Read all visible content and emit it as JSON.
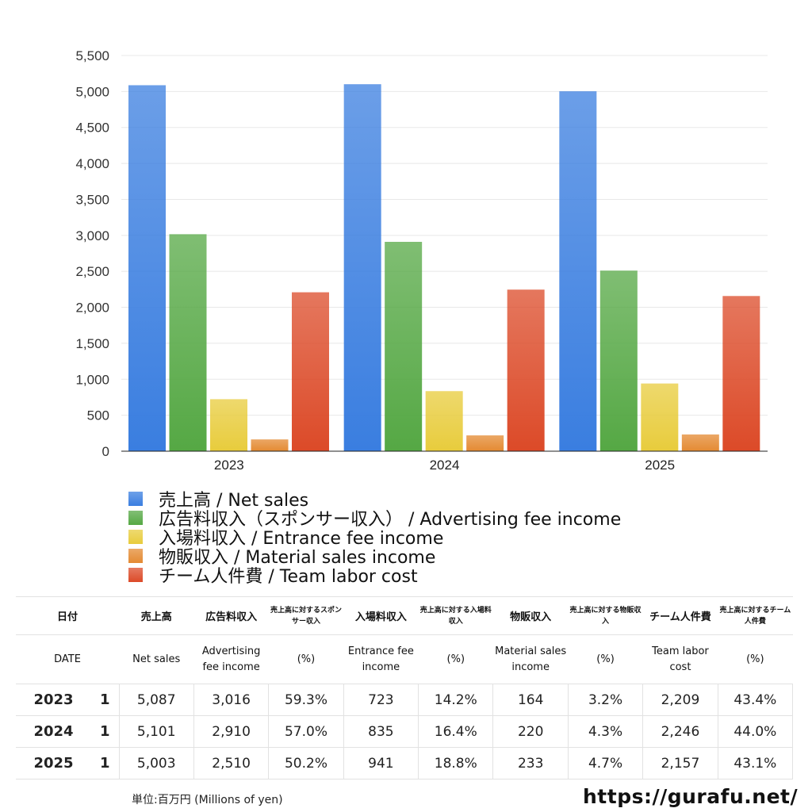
{
  "chart_data": {
    "type": "bar",
    "categories": [
      "2023",
      "2024",
      "2025"
    ],
    "ylim": [
      0,
      5500
    ],
    "yticks": [
      "0",
      "500",
      "1,000",
      "1,500",
      "2,000",
      "2,500",
      "3,000",
      "3,500",
      "4,000",
      "4,500",
      "5,000",
      "5,500"
    ],
    "grid": true,
    "legend_position": "bottom-left",
    "series": [
      {
        "name": "売上高 / Net sales",
        "values": [
          5087,
          5101,
          5003
        ],
        "color": "#3a7ee0"
      },
      {
        "name": "広告料収入（スポンサー収入） / Advertising fee income",
        "values": [
          3016,
          2910,
          2510
        ],
        "color": "#55a844"
      },
      {
        "name": "入場料収入 / Entrance fee income",
        "values": [
          723,
          835,
          941
        ],
        "color": "#e8cc3c"
      },
      {
        "name": "物販収入 / Material sales income",
        "values": [
          164,
          220,
          233
        ],
        "color": "#e48a32"
      },
      {
        "name": "チーム人件費 / Team labor cost",
        "values": [
          2209,
          2246,
          2157
        ],
        "color": "#dc4a28"
      }
    ]
  },
  "table": {
    "header_jp": [
      "日付",
      "売上高",
      "広告料収入",
      "売上高に対するスポンサー収入",
      "入場料収入",
      "売上高に対する入場料収入",
      "物販収入",
      "売上高に対する物販収入",
      "チーム人件費",
      "売上高に対するチーム人件費"
    ],
    "header_en": [
      "DATE",
      "Net sales",
      "Advertising fee income",
      "(%)",
      "Entrance fee income",
      "(%)",
      "Material sales income",
      "(%)",
      "Team labor cost",
      "(%)"
    ],
    "rows": [
      {
        "year": "2023",
        "n": "1",
        "cells": [
          "5,087",
          "3,016",
          "59.3%",
          "723",
          "14.2%",
          "164",
          "3.2%",
          "2,209",
          "43.4%"
        ]
      },
      {
        "year": "2024",
        "n": "1",
        "cells": [
          "5,101",
          "2,910",
          "57.0%",
          "835",
          "16.4%",
          "220",
          "4.3%",
          "2,246",
          "44.0%"
        ]
      },
      {
        "year": "2025",
        "n": "1",
        "cells": [
          "5,003",
          "2,510",
          "50.2%",
          "941",
          "18.8%",
          "233",
          "4.7%",
          "2,157",
          "43.1%"
        ]
      }
    ]
  },
  "unit": "単位:百万円 (Millions of yen)",
  "url": "https://gurafu.net/"
}
